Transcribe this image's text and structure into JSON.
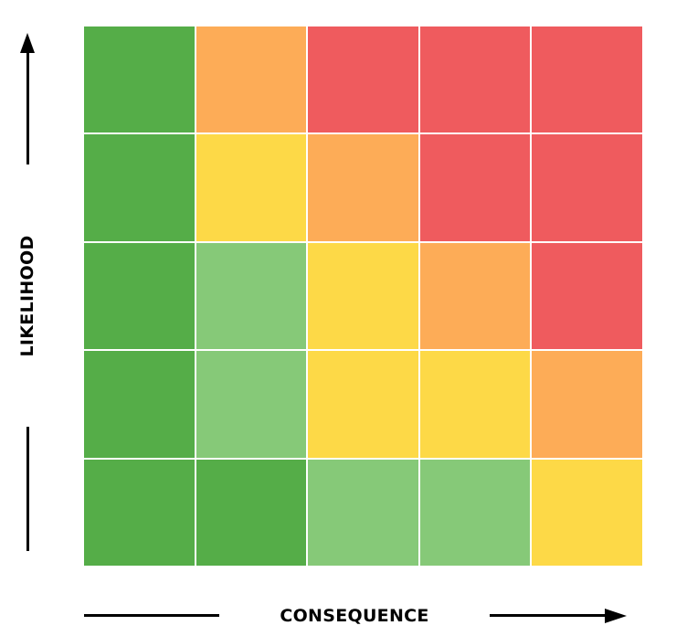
{
  "axes": {
    "y_label": "LIKELIHOOD",
    "x_label": "CONSEQUENCE"
  },
  "palette": {
    "dark_green": "#55ad48",
    "light_green": "#86c978",
    "yellow": "#fdd947",
    "orange": "#fdac57",
    "red": "#ef5b5e"
  },
  "matrix": {
    "rows": 5,
    "columns": 5,
    "cells": [
      [
        "dark_green",
        "orange",
        "red",
        "red",
        "red"
      ],
      [
        "dark_green",
        "yellow",
        "orange",
        "red",
        "red"
      ],
      [
        "dark_green",
        "light_green",
        "yellow",
        "orange",
        "red"
      ],
      [
        "dark_green",
        "light_green",
        "yellow",
        "yellow",
        "orange"
      ],
      [
        "dark_green",
        "dark_green",
        "light_green",
        "light_green",
        "yellow"
      ]
    ]
  }
}
